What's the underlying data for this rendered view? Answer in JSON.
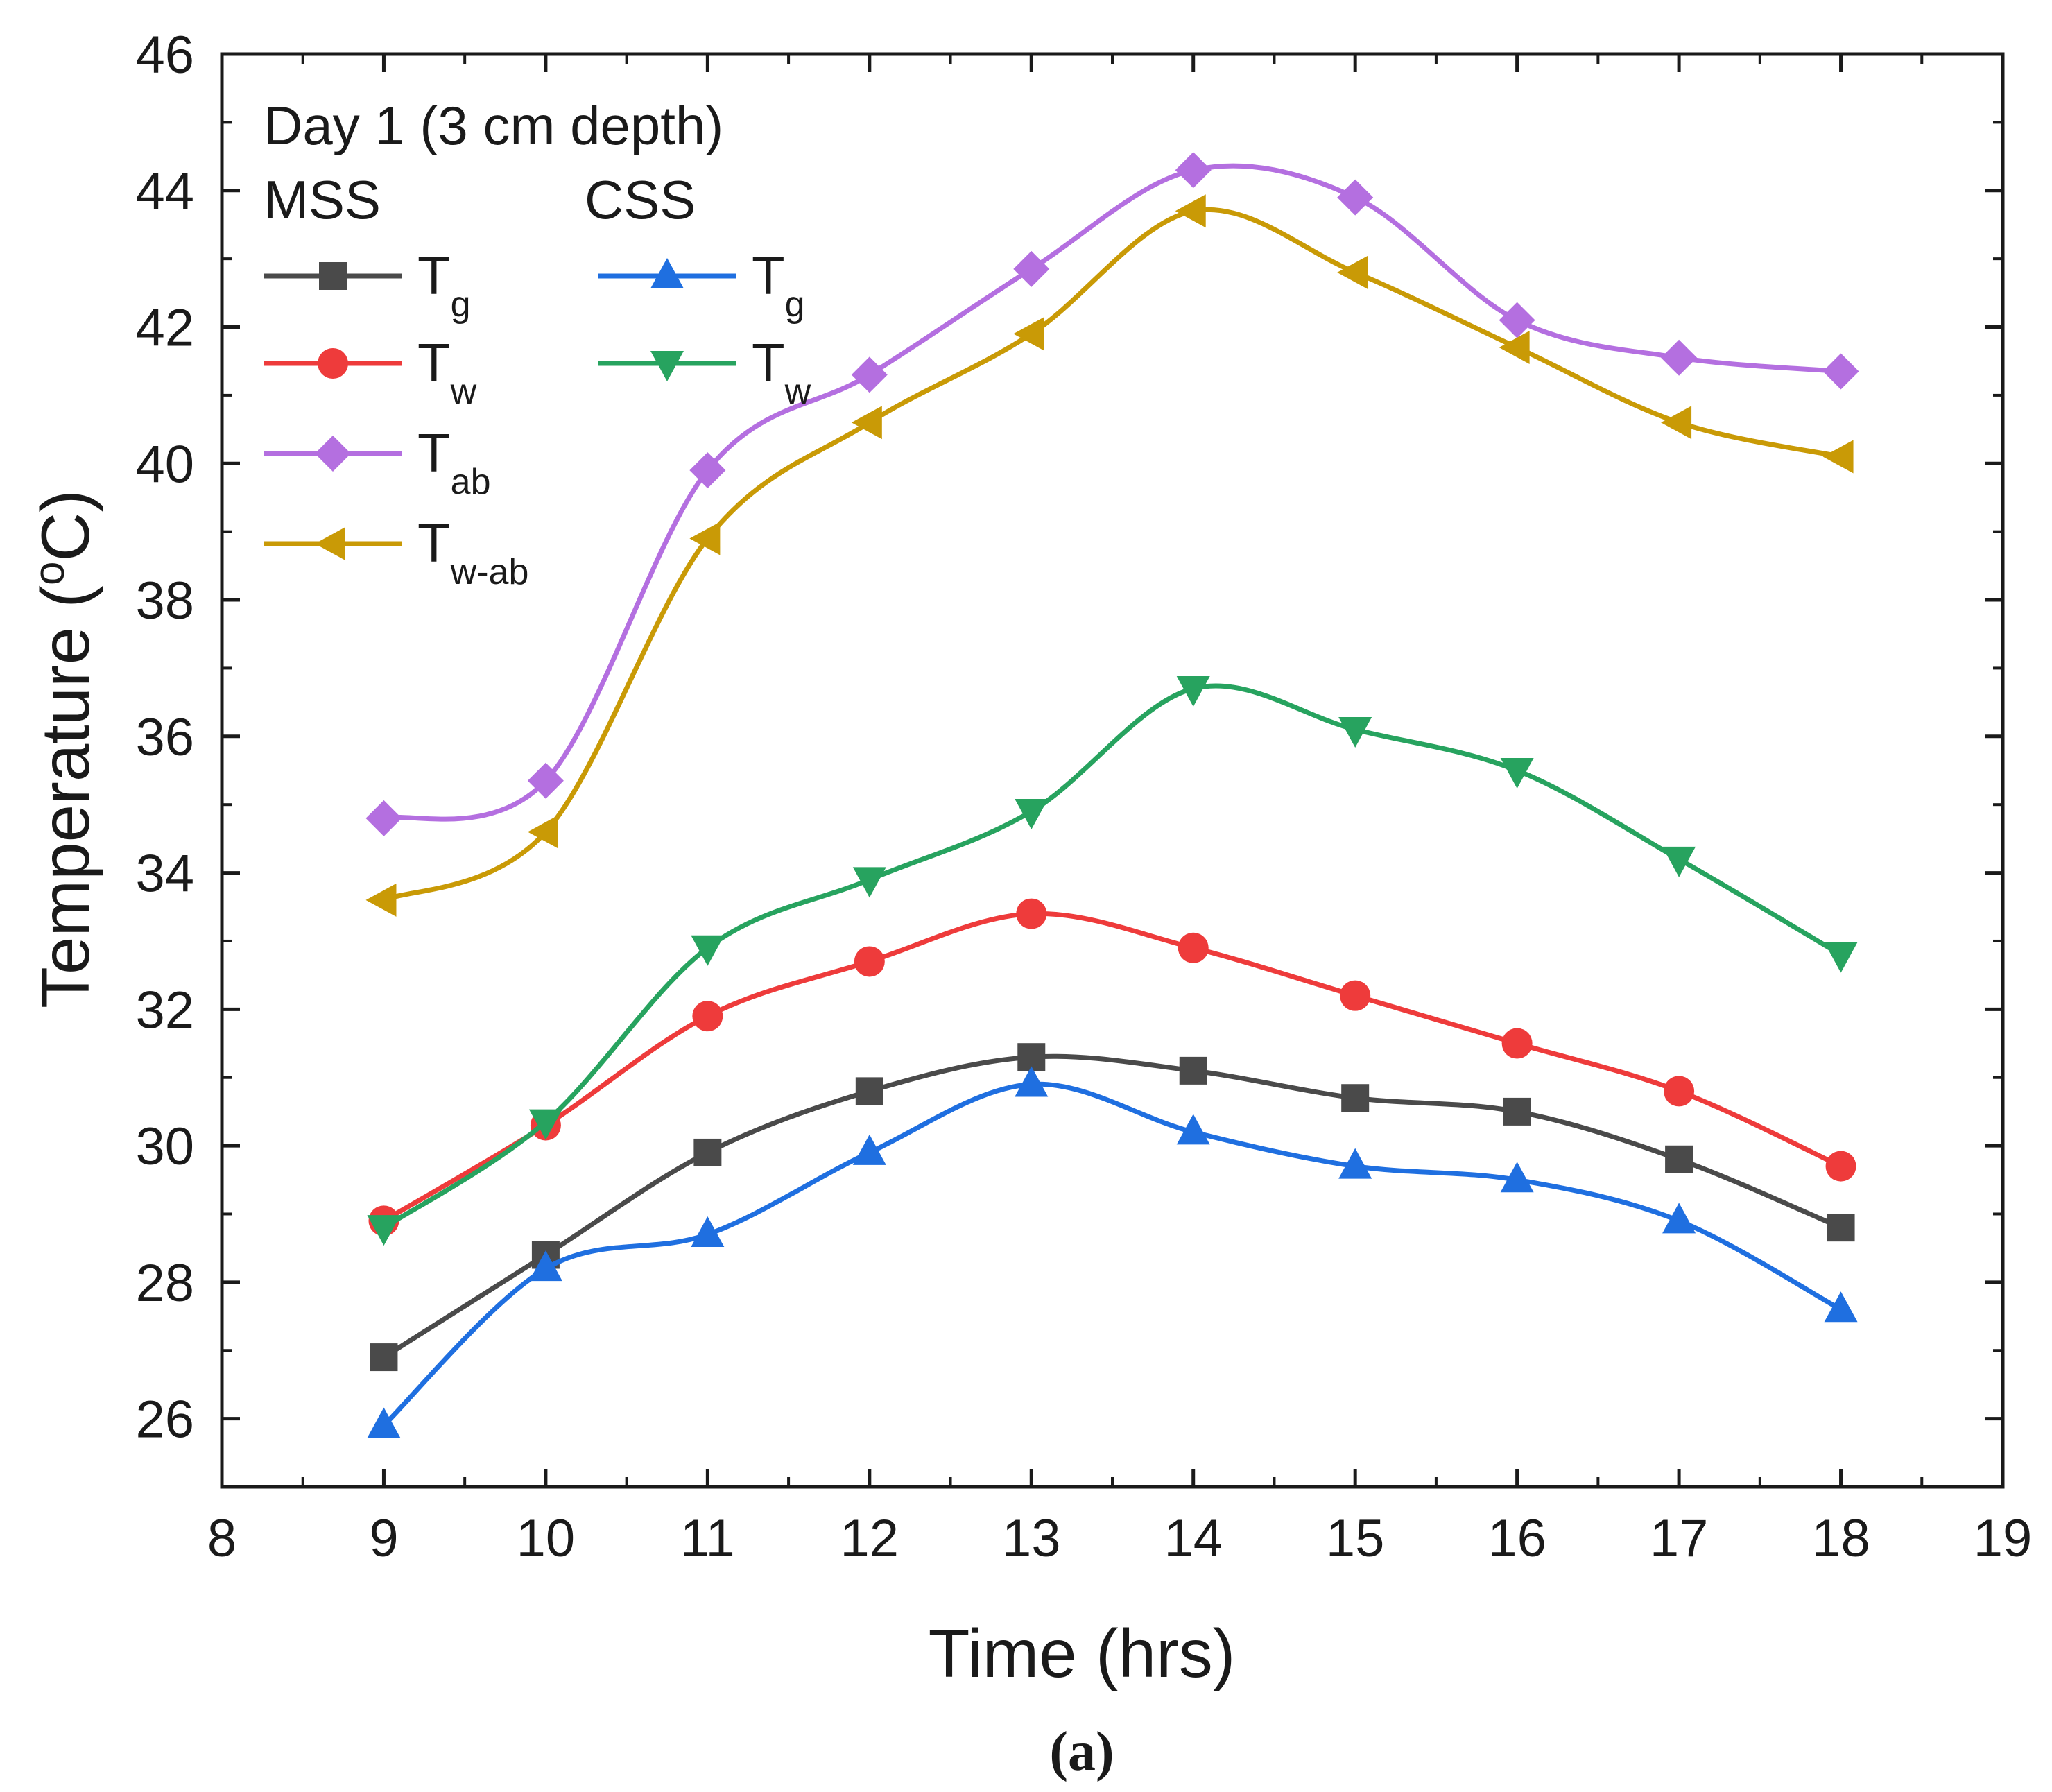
{
  "chart_data": {
    "type": "line",
    "xlabel": "Time (hrs)",
    "ylabel_main": "Temperature (",
    "ylabel_sup": "o",
    "ylabel_end": "C)",
    "xlim": [
      8,
      19
    ],
    "ylim": [
      25,
      46
    ],
    "xticks": [
      8,
      9,
      10,
      11,
      12,
      13,
      14,
      15,
      16,
      17,
      18,
      19
    ],
    "yticks": [
      26,
      28,
      30,
      32,
      34,
      36,
      38,
      40,
      42,
      44,
      46
    ],
    "annotation": "Day 1 (3 cm depth)",
    "legend_groups": [
      "MSS",
      "CSS"
    ],
    "caption": "(a)",
    "x": [
      9,
      10,
      11,
      12,
      13,
      14,
      15,
      16,
      17,
      18
    ],
    "series": [
      {
        "group": "MSS",
        "name": "T",
        "sub": "g",
        "color": "#4a4a4a",
        "marker": "square",
        "values": [
          26.9,
          28.4,
          29.9,
          30.8,
          31.3,
          31.1,
          30.7,
          30.5,
          29.8,
          28.8
        ]
      },
      {
        "group": "MSS",
        "name": "T",
        "sub": "w",
        "color": "#ee3b3b",
        "marker": "circle",
        "values": [
          28.9,
          30.3,
          31.9,
          32.7,
          33.4,
          32.9,
          32.2,
          31.5,
          30.8,
          29.7
        ]
      },
      {
        "group": "MSS",
        "name": "T",
        "sub": "ab",
        "color": "#b46fe0",
        "marker": "diamond",
        "values": [
          34.8,
          35.35,
          39.9,
          41.3,
          42.85,
          44.3,
          43.9,
          42.1,
          41.55,
          41.35
        ]
      },
      {
        "group": "MSS",
        "name": "T",
        "sub": "w-ab",
        "color": "#c99a06",
        "marker": "triangle-left",
        "values": [
          33.6,
          34.6,
          38.9,
          40.6,
          41.9,
          43.7,
          42.8,
          41.7,
          40.6,
          40.1
        ]
      },
      {
        "group": "CSS",
        "name": "T",
        "sub": "g",
        "color": "#1f6fe0",
        "marker": "triangle-up",
        "values": [
          25.9,
          28.2,
          28.7,
          29.9,
          30.9,
          30.2,
          29.7,
          29.5,
          28.9,
          27.6
        ]
      },
      {
        "group": "CSS",
        "name": "T",
        "sub": "w",
        "color": "#27a35f",
        "marker": "triangle-down",
        "values": [
          28.8,
          30.35,
          32.9,
          33.9,
          34.9,
          36.7,
          36.1,
          35.5,
          34.2,
          32.8
        ]
      }
    ]
  }
}
